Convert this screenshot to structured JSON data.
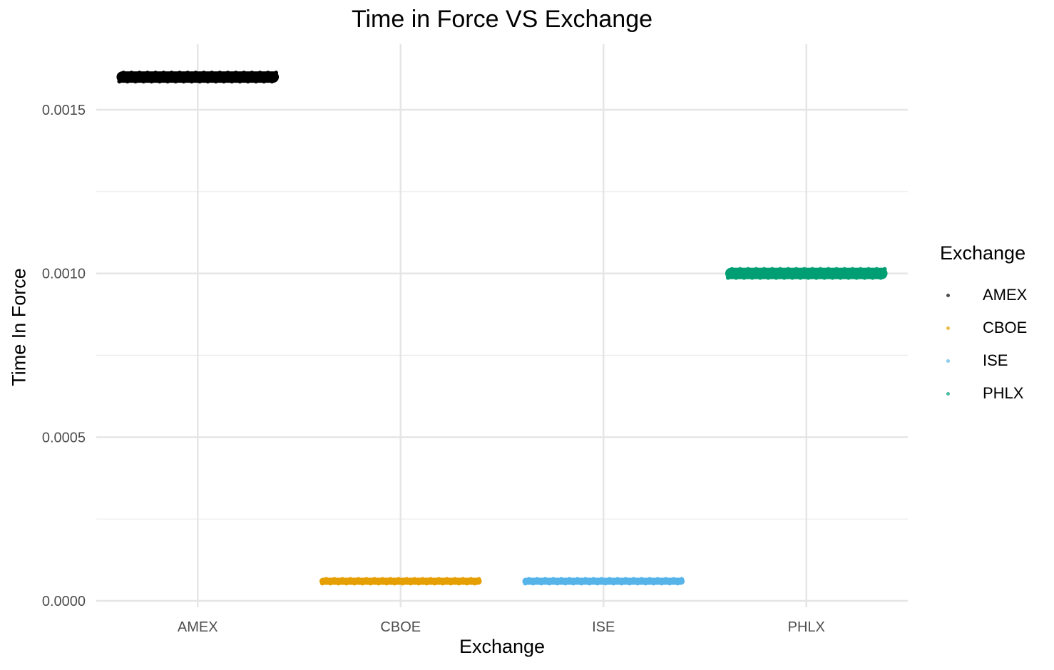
{
  "chart_data": {
    "type": "scatter",
    "title": "Time in Force VS Exchange",
    "xlabel": "Exchange",
    "ylabel": "Time In Force",
    "categories": [
      "AMEX",
      "CBOE",
      "ISE",
      "PHLX"
    ],
    "ylim": [
      -2e-05,
      0.0017
    ],
    "yticks": [
      0.0,
      0.0005,
      0.001,
      0.0015
    ],
    "ytick_labels": [
      "0.0000",
      "0.0005",
      "0.0010",
      "0.0015"
    ],
    "grid": true,
    "legend": {
      "title": "Exchange",
      "placement": "right"
    },
    "series": [
      {
        "name": "AMEX",
        "category": "AMEX",
        "value": 0.0016,
        "color": "#000000"
      },
      {
        "name": "CBOE",
        "category": "CBOE",
        "value": 6e-05,
        "color": "#E69F00"
      },
      {
        "name": "ISE",
        "category": "ISE",
        "value": 6e-05,
        "color": "#56B4E9"
      },
      {
        "name": "PHLX",
        "category": "PHLX",
        "value": 0.001,
        "color": "#009E73"
      }
    ]
  }
}
